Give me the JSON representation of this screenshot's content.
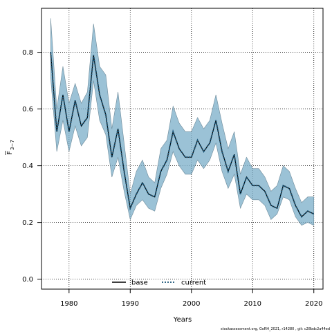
{
  "chart_data": {
    "type": "line",
    "title": "",
    "xlabel": "Years",
    "ylabel_main": "F",
    "ylabel_sub": "3−7",
    "xlim": [
      1975.5,
      2021.5
    ],
    "ylim": [
      -0.035,
      0.955
    ],
    "x_ticks": [
      1980,
      1990,
      2000,
      2010,
      2020
    ],
    "y_ticks": [
      0.0,
      0.2,
      0.4,
      0.6,
      0.8
    ],
    "y_tick_labels": [
      "0.0",
      "0.2",
      "0.4",
      "0.6",
      "0.8"
    ],
    "grid": true,
    "legend_placement": "bottom-center",
    "years": [
      1977,
      1978,
      1979,
      1980,
      1981,
      1982,
      1983,
      1984,
      1985,
      1986,
      1987,
      1988,
      1989,
      1990,
      1991,
      1992,
      1993,
      1994,
      1995,
      1996,
      1997,
      1998,
      1999,
      2000,
      2001,
      2002,
      2003,
      2004,
      2005,
      2006,
      2007,
      2008,
      2009,
      2010,
      2011,
      2012,
      2013,
      2014,
      2015,
      2016,
      2017,
      2018,
      2019,
      2020
    ],
    "series": [
      {
        "name": "base",
        "color": "#000000",
        "style": "solid",
        "values": [
          0.8,
          0.52,
          0.65,
          0.52,
          0.63,
          0.54,
          0.57,
          0.79,
          0.65,
          0.58,
          0.43,
          0.53,
          0.38,
          0.25,
          0.3,
          0.34,
          0.3,
          0.29,
          0.38,
          0.42,
          0.52,
          0.46,
          0.43,
          0.43,
          0.49,
          0.45,
          0.48,
          0.56,
          0.45,
          0.38,
          0.44,
          0.3,
          0.36,
          0.33,
          0.33,
          0.31,
          0.26,
          0.25,
          0.33,
          0.32,
          0.26,
          0.22,
          0.24,
          0.23
        ]
      },
      {
        "name": "current",
        "color": "#1a5577",
        "style": "dotted",
        "values": [
          0.8,
          0.52,
          0.65,
          0.52,
          0.63,
          0.54,
          0.57,
          0.79,
          0.65,
          0.58,
          0.43,
          0.53,
          0.38,
          0.25,
          0.3,
          0.34,
          0.3,
          0.29,
          0.38,
          0.42,
          0.52,
          0.46,
          0.43,
          0.43,
          0.49,
          0.45,
          0.48,
          0.56,
          0.45,
          0.38,
          0.44,
          0.3,
          0.36,
          0.33,
          0.33,
          0.31,
          0.26,
          0.25,
          0.33,
          0.32,
          0.26,
          0.22,
          0.24,
          0.23
        ]
      }
    ],
    "confidence_band": {
      "color": "#7aaec8",
      "upper": [
        0.92,
        0.6,
        0.75,
        0.62,
        0.69,
        0.62,
        0.66,
        0.9,
        0.75,
        0.72,
        0.53,
        0.66,
        0.48,
        0.3,
        0.38,
        0.42,
        0.36,
        0.34,
        0.46,
        0.49,
        0.61,
        0.55,
        0.52,
        0.52,
        0.57,
        0.53,
        0.56,
        0.65,
        0.55,
        0.46,
        0.52,
        0.37,
        0.43,
        0.39,
        0.39,
        0.36,
        0.31,
        0.33,
        0.4,
        0.38,
        0.32,
        0.27,
        0.29,
        0.29
      ],
      "lower": [
        0.71,
        0.45,
        0.56,
        0.45,
        0.54,
        0.47,
        0.5,
        0.7,
        0.56,
        0.51,
        0.36,
        0.43,
        0.31,
        0.21,
        0.26,
        0.28,
        0.25,
        0.24,
        0.32,
        0.37,
        0.45,
        0.4,
        0.37,
        0.37,
        0.42,
        0.39,
        0.42,
        0.48,
        0.38,
        0.32,
        0.37,
        0.25,
        0.3,
        0.28,
        0.28,
        0.26,
        0.21,
        0.23,
        0.29,
        0.28,
        0.22,
        0.19,
        0.2,
        0.19
      ]
    }
  },
  "footer": {
    "credit": "stockassessment.org, GoRH_2021, r14280 , git: c28bdc2a44ed"
  }
}
